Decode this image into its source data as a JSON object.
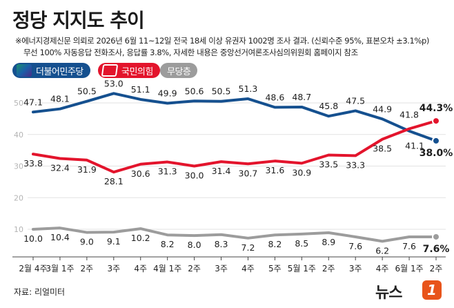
{
  "header": {
    "title": "정당 지지도 추이",
    "note_line1": "※에너지경제신문 의뢰로 2026년 6월 11~12일 전국 18세 이상 유권자 1002명 조사 결과. (신뢰수준 95%, 표본오차 ±3.1%p)",
    "note_line2": "무선 100% 자동응답 전화조사, 응답률 3.8%, 자세한 내용은 중앙선거여론조사심의위원회 홈페이지 참조"
  },
  "legend": {
    "minjoo_label": "더불어민주당",
    "ppp_label": "국민의힘",
    "none_label": "무당층"
  },
  "footer": {
    "source": "자료: 리얼미터",
    "brand": "뉴스",
    "brand_badge": "1"
  },
  "colors": {
    "minjoo": "#15508f",
    "ppp": "#e3142c",
    "none": "#9c9c9c",
    "grid": "#e2e2e2"
  },
  "chart_data": {
    "type": "line",
    "title": "정당 지지도 추이",
    "categories": [
      "2월 4주",
      "3월 1주",
      "2주",
      "3주",
      "4주",
      "4월 1주",
      "2주",
      "3주",
      "4주",
      "5주",
      "5월 1주",
      "2주",
      "3주",
      "4주",
      "6월 1주",
      "2주"
    ],
    "y_ticks": [
      10,
      20,
      30,
      40,
      50
    ],
    "ylim": [
      0,
      55
    ],
    "grid": true,
    "legend_position": "top-left",
    "series": [
      {
        "name": "더불어민주당",
        "color": "#15508f",
        "values": [
          47.1,
          48.1,
          50.5,
          53.0,
          51.1,
          49.9,
          50.6,
          50.5,
          51.3,
          48.6,
          48.7,
          45.8,
          47.5,
          44.9,
          41.1,
          38.0
        ],
        "labels": [
          "47.1",
          "48.1",
          "50.5",
          "53.0",
          "51.1",
          "49.9",
          "50.6",
          "50.5",
          "51.3",
          "48.6",
          "48.7",
          "45.8",
          "47.5",
          "44.9",
          "41.1",
          "38.0%"
        ]
      },
      {
        "name": "국민의힘",
        "color": "#e3142c",
        "values": [
          33.8,
          32.4,
          31.9,
          28.1,
          30.6,
          31.3,
          30.0,
          31.4,
          30.7,
          31.6,
          30.9,
          33.5,
          33.3,
          38.5,
          41.8,
          44.3
        ],
        "labels": [
          "33.8",
          "32.4",
          "31.9",
          "28.1",
          "30.6",
          "31.3",
          "30.0",
          "31.4",
          "30.7",
          "31.6",
          "30.9",
          "33.5",
          "33.3",
          "38.5",
          "41.8",
          "44.3%"
        ]
      },
      {
        "name": "무당층",
        "color": "#9c9c9c",
        "values": [
          10.0,
          10.4,
          9.0,
          9.1,
          10.2,
          8.2,
          8.0,
          8.3,
          7.2,
          8.2,
          8.5,
          8.9,
          7.6,
          6.2,
          7.6,
          7.6
        ],
        "labels": [
          "10.0",
          "10.4",
          "9.0",
          "9.1",
          "10.2",
          "8.2",
          "8.0",
          "8.3",
          "7.2",
          "8.2",
          "8.5",
          "8.9",
          "7.6",
          "6.2",
          "7.6",
          "7.6%"
        ]
      }
    ]
  }
}
